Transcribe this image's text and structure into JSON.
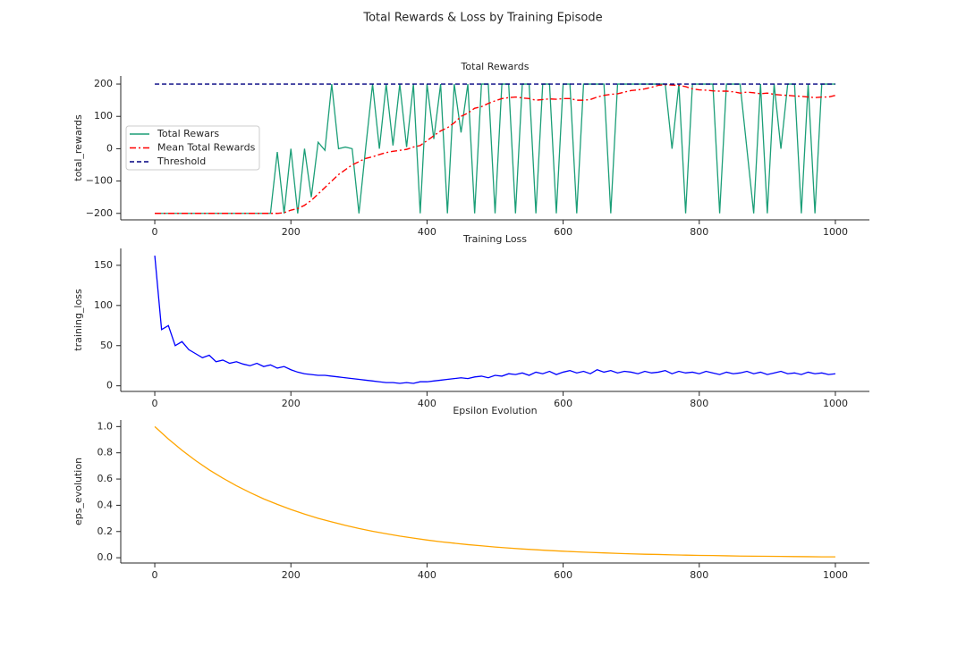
{
  "title": "Total Rewards & Loss by Training Episode",
  "chart_data": [
    {
      "type": "line",
      "title": "Total Rewards",
      "y_label": "total_rewards",
      "x": [
        0,
        10,
        20,
        30,
        40,
        50,
        60,
        70,
        80,
        90,
        100,
        110,
        120,
        130,
        140,
        150,
        160,
        170,
        180,
        190,
        200,
        210,
        220,
        230,
        240,
        250,
        260,
        270,
        280,
        290,
        300,
        310,
        320,
        330,
        340,
        350,
        360,
        370,
        380,
        390,
        400,
        410,
        420,
        430,
        440,
        450,
        460,
        470,
        480,
        490,
        500,
        510,
        520,
        530,
        540,
        550,
        560,
        570,
        580,
        590,
        600,
        610,
        620,
        630,
        640,
        650,
        660,
        670,
        680,
        690,
        700,
        710,
        720,
        730,
        740,
        750,
        760,
        770,
        780,
        790,
        800,
        810,
        820,
        830,
        840,
        850,
        860,
        870,
        880,
        890,
        900,
        910,
        920,
        930,
        940,
        950,
        960,
        970,
        980,
        990,
        1000
      ],
      "series": [
        {
          "name": "Total Rewars",
          "color": "#1b9e77",
          "linestyle": "solid",
          "values": [
            -200,
            -200,
            -200,
            -200,
            -200,
            -200,
            -200,
            -200,
            -200,
            -200,
            -200,
            -200,
            -200,
            -200,
            -200,
            -200,
            -200,
            -200,
            -10,
            -200,
            0,
            -200,
            0,
            -150,
            20,
            -5,
            200,
            0,
            5,
            0,
            -200,
            5,
            200,
            0,
            200,
            10,
            200,
            5,
            200,
            -200,
            200,
            30,
            200,
            -200,
            200,
            50,
            200,
            -200,
            200,
            200,
            -200,
            200,
            200,
            -200,
            200,
            200,
            -200,
            200,
            200,
            -200,
            200,
            200,
            -200,
            200,
            200,
            200,
            200,
            -200,
            200,
            200,
            200,
            200,
            200,
            200,
            200,
            200,
            0,
            200,
            -200,
            200,
            200,
            200,
            200,
            -200,
            200,
            200,
            200,
            0,
            -200,
            200,
            -200,
            200,
            0,
            200,
            200,
            -200,
            200,
            -200,
            200,
            200,
            200
          ]
        },
        {
          "name": "Mean Total Rewards",
          "color": "#ff0000",
          "linestyle": "dashdot",
          "values": [
            -200,
            -200,
            -200,
            -200,
            -200,
            -200,
            -200,
            -200,
            -200,
            -200,
            -200,
            -200,
            -200,
            -200,
            -200,
            -200,
            -200,
            -200,
            -200,
            -198,
            -190,
            -185,
            -175,
            -160,
            -140,
            -120,
            -100,
            -80,
            -65,
            -50,
            -40,
            -30,
            -25,
            -18,
            -12,
            -8,
            -5,
            -2,
            5,
            10,
            25,
            40,
            55,
            65,
            80,
            100,
            110,
            125,
            130,
            140,
            148,
            155,
            158,
            160,
            157,
            155,
            150,
            152,
            154,
            153,
            155,
            155,
            150,
            150,
            152,
            160,
            165,
            168,
            170,
            175,
            180,
            182,
            185,
            190,
            196,
            198,
            197,
            196,
            192,
            185,
            182,
            181,
            179,
            178,
            178,
            176,
            172,
            175,
            173,
            170,
            172,
            168,
            166,
            165,
            163,
            162,
            160,
            158,
            160,
            160,
            165
          ]
        },
        {
          "name": "Threshold",
          "color": "#000080",
          "linestyle": "dashed",
          "x": [
            0,
            1000
          ],
          "values": [
            200,
            200
          ]
        }
      ],
      "xlim": [
        -50,
        1050
      ],
      "xticks": [
        0,
        200,
        400,
        600,
        800,
        1000
      ],
      "ylim": [
        -220,
        225
      ],
      "yticks": [
        {
          "value": -200,
          "label": "−200"
        },
        {
          "value": -100,
          "label": "−100"
        },
        0,
        100,
        200
      ],
      "legend": "center left"
    },
    {
      "type": "line",
      "title": "Training Loss",
      "y_label": "training_loss",
      "x": [
        0,
        10,
        20,
        30,
        40,
        50,
        60,
        70,
        80,
        90,
        100,
        110,
        120,
        130,
        140,
        150,
        160,
        170,
        180,
        190,
        200,
        210,
        220,
        230,
        240,
        250,
        260,
        270,
        280,
        290,
        300,
        310,
        320,
        330,
        340,
        350,
        360,
        370,
        380,
        390,
        400,
        410,
        420,
        430,
        440,
        450,
        460,
        470,
        480,
        490,
        500,
        510,
        520,
        530,
        540,
        550,
        560,
        570,
        580,
        590,
        600,
        610,
        620,
        630,
        640,
        650,
        660,
        670,
        680,
        690,
        700,
        710,
        720,
        730,
        740,
        750,
        760,
        770,
        780,
        790,
        800,
        810,
        820,
        830,
        840,
        850,
        860,
        870,
        880,
        890,
        900,
        910,
        920,
        930,
        940,
        950,
        960,
        970,
        980,
        990,
        1000
      ],
      "series": [
        {
          "name": "training_loss",
          "color": "#0000ff",
          "linestyle": "solid",
          "values": [
            162,
            70,
            75,
            50,
            55,
            45,
            40,
            35,
            38,
            30,
            32,
            28,
            30,
            27,
            25,
            28,
            24,
            26,
            22,
            24,
            20,
            17,
            15,
            14,
            13,
            13,
            12,
            11,
            10,
            9,
            8,
            7,
            6,
            5,
            4,
            4,
            3,
            4,
            3,
            5,
            5,
            6,
            7,
            8,
            9,
            10,
            9,
            11,
            12,
            10,
            13,
            12,
            15,
            14,
            16,
            13,
            17,
            15,
            18,
            14,
            17,
            19,
            16,
            18,
            15,
            20,
            17,
            19,
            16,
            18,
            17,
            15,
            18,
            16,
            17,
            19,
            15,
            18,
            16,
            17,
            15,
            18,
            16,
            14,
            17,
            15,
            16,
            18,
            15,
            17,
            14,
            16,
            18,
            15,
            16,
            14,
            17,
            15,
            16,
            14,
            15
          ]
        }
      ],
      "xlim": [
        -50,
        1050
      ],
      "xticks": [
        0,
        200,
        400,
        600,
        800,
        1000
      ],
      "ylim": [
        -7,
        171
      ],
      "yticks": [
        0,
        50,
        100,
        150
      ]
    },
    {
      "type": "line",
      "title": "Epsilon Evolution",
      "y_label": "eps_evolution",
      "x": [
        0,
        20,
        40,
        60,
        80,
        100,
        120,
        140,
        160,
        180,
        200,
        220,
        240,
        260,
        280,
        300,
        320,
        340,
        360,
        380,
        400,
        420,
        440,
        460,
        480,
        500,
        520,
        540,
        560,
        580,
        600,
        620,
        640,
        660,
        680,
        700,
        720,
        740,
        760,
        780,
        800,
        820,
        840,
        860,
        880,
        900,
        920,
        940,
        960,
        980,
        1000
      ],
      "series": [
        {
          "name": "eps_evolution",
          "color": "#ffa500",
          "linestyle": "solid",
          "values": [
            1,
            0.905,
            0.819,
            0.741,
            0.67,
            0.607,
            0.549,
            0.497,
            0.449,
            0.407,
            0.368,
            0.333,
            0.301,
            0.273,
            0.247,
            0.223,
            0.202,
            0.183,
            0.165,
            0.15,
            0.135,
            0.122,
            0.111,
            0.1,
            0.091,
            0.082,
            0.074,
            0.067,
            0.061,
            0.055,
            0.05,
            0.045,
            0.041,
            0.037,
            0.033,
            0.03,
            0.027,
            0.025,
            0.022,
            0.02,
            0.018,
            0.017,
            0.015,
            0.013,
            0.012,
            0.011,
            0.01,
            0.009,
            0.008,
            0.007,
            0.007
          ]
        }
      ],
      "xlim": [
        -50,
        1050
      ],
      "xticks": [
        0,
        200,
        400,
        600,
        800,
        1000
      ],
      "ylim": [
        -0.04,
        1.05
      ],
      "yticks": [
        {
          "value": 0,
          "label": "0.0"
        },
        0.2,
        0.4,
        0.6,
        0.8,
        {
          "value": 1,
          "label": "1.0"
        }
      ]
    }
  ]
}
